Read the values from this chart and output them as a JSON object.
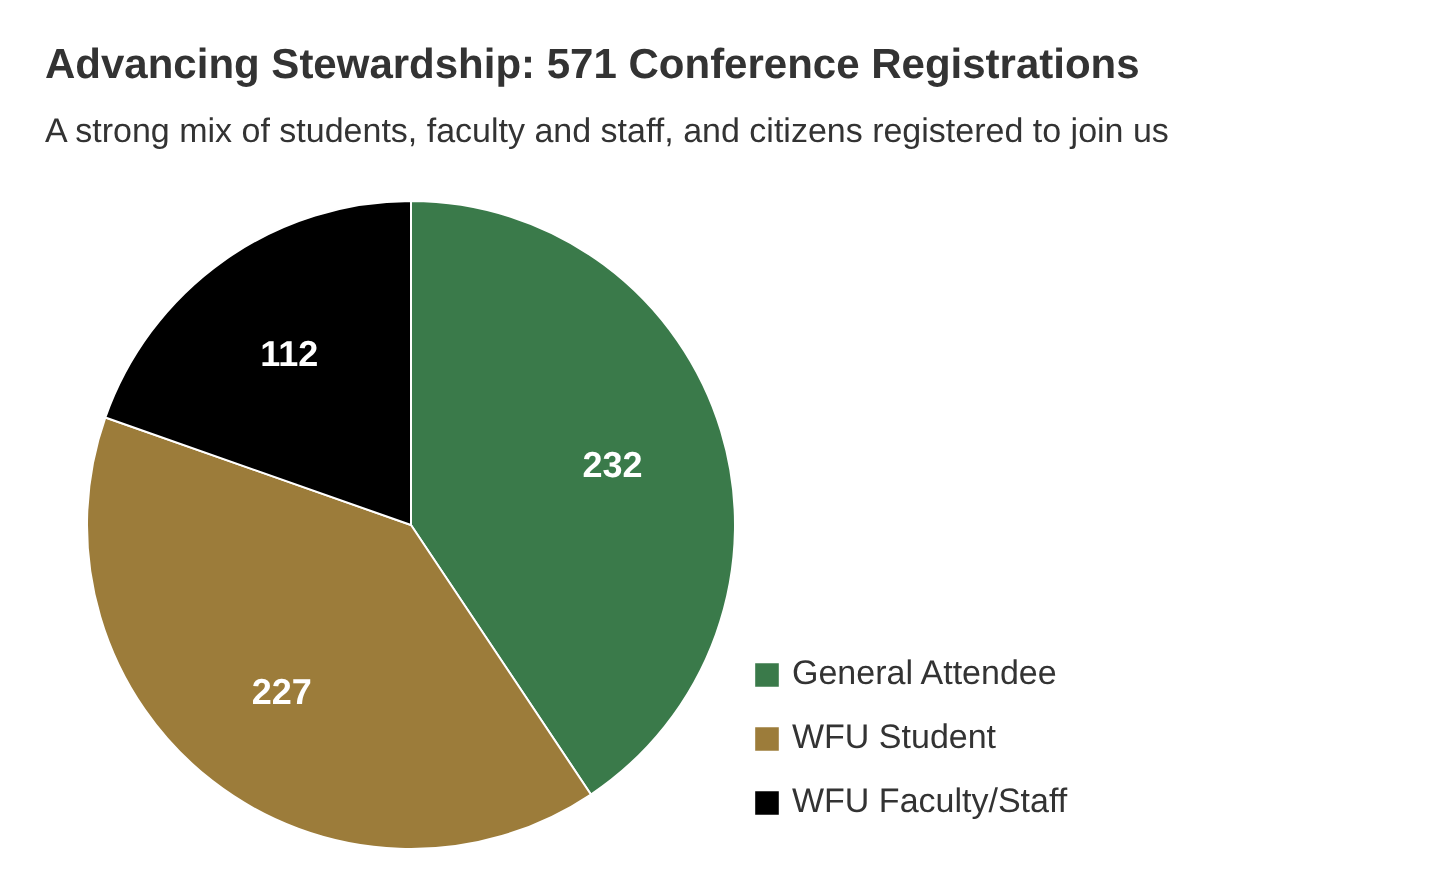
{
  "chart_data": {
    "type": "pie",
    "title": "Advancing Stewardship: 571 Conference Registrations",
    "subtitle": "A strong mix of students, faculty and staff, and citizens registered to join us",
    "categories": [
      "General Attendee",
      "WFU Student",
      "WFU Faculty/Staff"
    ],
    "values": [
      232,
      227,
      112
    ],
    "colors": [
      "#3a7a4a",
      "#9c7c3a",
      "#000000"
    ],
    "data_labels": true,
    "legend": "bottom right"
  }
}
